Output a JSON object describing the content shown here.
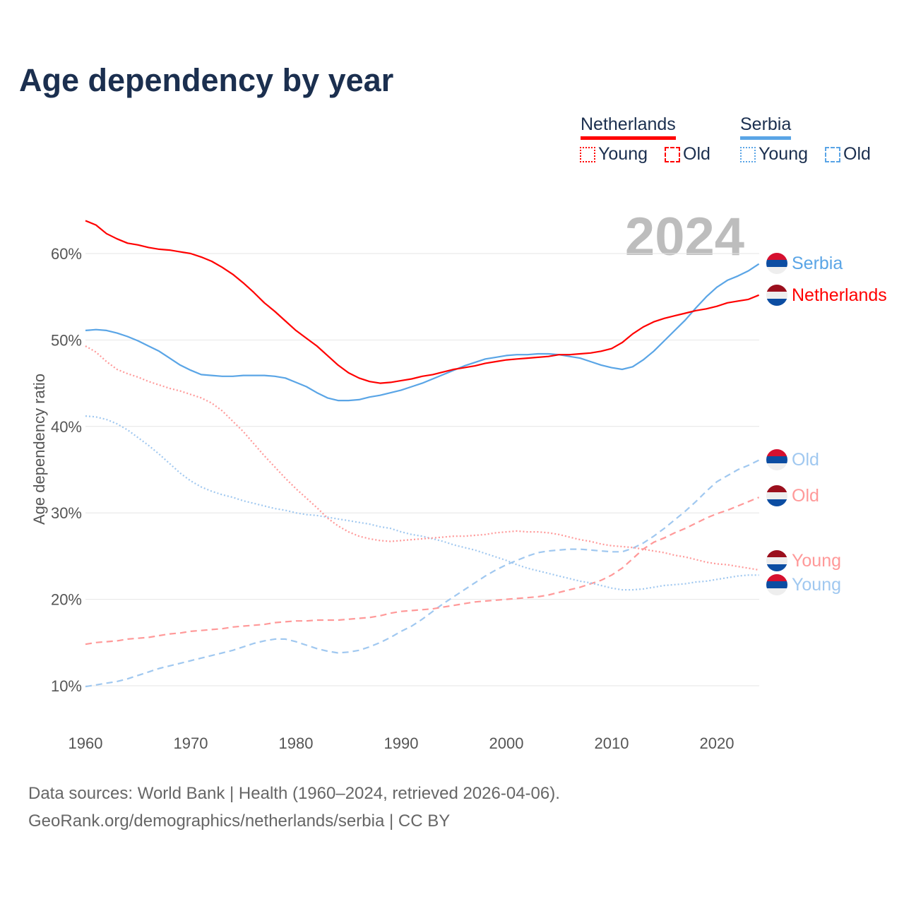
{
  "chart_data": {
    "type": "line",
    "title": "Age dependency by year",
    "ylabel": "Age dependency ratio",
    "xlabel": "",
    "watermark_year": "2024",
    "xlim": [
      1960,
      2024
    ],
    "ylim": [
      10,
      63
    ],
    "x_ticks": [
      "1960",
      "1970",
      "1980",
      "1990",
      "2000",
      "2010",
      "2020"
    ],
    "y_ticks": [
      {
        "v": 10,
        "label": "10%"
      },
      {
        "v": 20,
        "label": "20%"
      },
      {
        "v": 30,
        "label": "30%"
      },
      {
        "v": 40,
        "label": "40%"
      },
      {
        "v": 50,
        "label": "50%"
      },
      {
        "v": 60,
        "label": "60%"
      }
    ],
    "grid": true,
    "legend": {
      "placement": "top-right",
      "groups": [
        {
          "country": "Netherlands",
          "color": "#ff0000",
          "items": [
            "Young",
            "Old"
          ]
        },
        {
          "country": "Serbia",
          "color": "#5aa5e6",
          "items": [
            "Young",
            "Old"
          ]
        }
      ]
    },
    "x_start": 1960,
    "series": [
      {
        "name": "Netherlands",
        "label": "Netherlands",
        "color": "#ff0000",
        "dash": "solid",
        "values": [
          63.8,
          63.3,
          62.3,
          61.7,
          61.2,
          61.0,
          60.7,
          60.5,
          60.4,
          60.2,
          60.0,
          59.6,
          59.1,
          58.4,
          57.6,
          56.6,
          55.5,
          54.3,
          53.3,
          52.2,
          51.1,
          50.2,
          49.3,
          48.2,
          47.1,
          46.2,
          45.6,
          45.2,
          45.0,
          45.1,
          45.3,
          45.5,
          45.8,
          46.0,
          46.3,
          46.6,
          46.8,
          47.0,
          47.3,
          47.5,
          47.7,
          47.8,
          47.9,
          48.0,
          48.1,
          48.3,
          48.3,
          48.4,
          48.5,
          48.7,
          49.0,
          49.7,
          50.7,
          51.5,
          52.1,
          52.5,
          52.8,
          53.1,
          53.4,
          53.6,
          53.9,
          54.3,
          54.5,
          54.7,
          55.2
        ]
      },
      {
        "name": "Serbia",
        "label": "Serbia",
        "color": "#5aa5e6",
        "dash": "solid",
        "values": [
          51.1,
          51.2,
          51.1,
          50.8,
          50.4,
          49.9,
          49.3,
          48.7,
          47.9,
          47.1,
          46.5,
          46.0,
          45.9,
          45.8,
          45.8,
          45.9,
          45.9,
          45.9,
          45.8,
          45.6,
          45.1,
          44.6,
          43.9,
          43.3,
          43.0,
          43.0,
          43.1,
          43.4,
          43.6,
          43.9,
          44.2,
          44.6,
          45.0,
          45.5,
          46.0,
          46.5,
          47.0,
          47.4,
          47.8,
          48.0,
          48.2,
          48.3,
          48.3,
          48.4,
          48.4,
          48.3,
          48.1,
          47.9,
          47.5,
          47.1,
          46.8,
          46.6,
          46.9,
          47.7,
          48.7,
          49.9,
          51.1,
          52.3,
          53.7,
          55.0,
          56.1,
          56.9,
          57.4,
          58.0,
          58.8
        ]
      },
      {
        "name": "Netherlands Young",
        "label": "Young",
        "color": "#ff9999",
        "dash": "dotted",
        "values": [
          49.3,
          48.6,
          47.5,
          46.6,
          46.1,
          45.7,
          45.2,
          44.8,
          44.4,
          44.1,
          43.7,
          43.3,
          42.7,
          41.8,
          40.6,
          39.4,
          38.0,
          36.6,
          35.3,
          34.0,
          32.8,
          31.7,
          30.6,
          29.4,
          28.5,
          27.8,
          27.3,
          27.0,
          26.8,
          26.7,
          26.8,
          26.9,
          27.0,
          27.1,
          27.2,
          27.3,
          27.3,
          27.4,
          27.5,
          27.7,
          27.8,
          27.9,
          27.8,
          27.8,
          27.7,
          27.5,
          27.2,
          26.9,
          26.7,
          26.4,
          26.2,
          26.1,
          26.0,
          25.8,
          25.6,
          25.4,
          25.1,
          24.9,
          24.6,
          24.3,
          24.1,
          24.0,
          23.8,
          23.6,
          23.4
        ]
      },
      {
        "name": "Serbia Young",
        "label": "Young",
        "color": "#a0c8f0",
        "dash": "dotted",
        "values": [
          41.2,
          41.1,
          40.8,
          40.3,
          39.6,
          38.7,
          37.8,
          36.8,
          35.7,
          34.6,
          33.7,
          33.0,
          32.5,
          32.1,
          31.8,
          31.4,
          31.1,
          30.8,
          30.5,
          30.3,
          30.0,
          29.8,
          29.7,
          29.5,
          29.3,
          29.1,
          28.9,
          28.7,
          28.4,
          28.2,
          27.8,
          27.5,
          27.3,
          27.0,
          26.7,
          26.3,
          26.0,
          25.7,
          25.3,
          24.9,
          24.5,
          24.0,
          23.6,
          23.3,
          23.0,
          22.7,
          22.4,
          22.1,
          21.9,
          21.6,
          21.3,
          21.1,
          21.1,
          21.2,
          21.4,
          21.6,
          21.7,
          21.8,
          22.0,
          22.1,
          22.3,
          22.5,
          22.7,
          22.8,
          22.8
        ]
      },
      {
        "name": "Netherlands Old",
        "label": "Old",
        "color": "#ff9999",
        "dash": "dashed",
        "values": [
          14.8,
          15.0,
          15.1,
          15.2,
          15.4,
          15.5,
          15.6,
          15.8,
          16.0,
          16.1,
          16.3,
          16.4,
          16.5,
          16.6,
          16.8,
          16.9,
          17.0,
          17.1,
          17.3,
          17.4,
          17.5,
          17.5,
          17.6,
          17.6,
          17.6,
          17.7,
          17.8,
          17.9,
          18.1,
          18.4,
          18.6,
          18.7,
          18.8,
          18.9,
          19.1,
          19.3,
          19.5,
          19.7,
          19.8,
          19.9,
          20.0,
          20.1,
          20.2,
          20.3,
          20.5,
          20.8,
          21.1,
          21.4,
          21.8,
          22.2,
          22.8,
          23.6,
          24.7,
          25.8,
          26.6,
          27.1,
          27.7,
          28.2,
          28.8,
          29.4,
          29.9,
          30.3,
          30.8,
          31.3,
          31.8
        ]
      },
      {
        "name": "Serbia Old",
        "label": "Old",
        "color": "#a0c8f0",
        "dash": "dashed",
        "values": [
          9.9,
          10.1,
          10.3,
          10.5,
          10.8,
          11.2,
          11.6,
          12.0,
          12.3,
          12.6,
          12.9,
          13.2,
          13.5,
          13.8,
          14.1,
          14.5,
          14.9,
          15.2,
          15.4,
          15.4,
          15.1,
          14.7,
          14.3,
          14.0,
          13.8,
          13.9,
          14.1,
          14.5,
          15.0,
          15.6,
          16.3,
          16.9,
          17.7,
          18.6,
          19.5,
          20.3,
          21.1,
          21.9,
          22.7,
          23.4,
          24.0,
          24.5,
          25.0,
          25.4,
          25.6,
          25.7,
          25.8,
          25.8,
          25.7,
          25.6,
          25.5,
          25.5,
          25.9,
          26.5,
          27.3,
          28.2,
          29.2,
          30.2,
          31.3,
          32.5,
          33.6,
          34.3,
          35.0,
          35.5,
          36.1
        ]
      }
    ]
  },
  "source": {
    "line1": "Data sources: World Bank | Health (1960–2024, retrieved 2026-04-06).",
    "line2": "GeoRank.org/demographics/netherlands/serbia | CC BY"
  }
}
